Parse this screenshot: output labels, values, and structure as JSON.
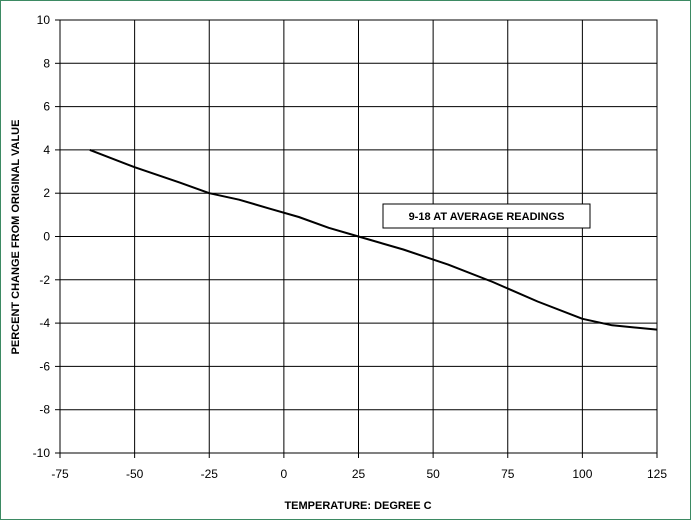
{
  "chart_data": {
    "type": "line",
    "title": "",
    "xlabel": "TEMPERATURE: DEGREE C",
    "ylabel": "PERCENT CHANGE FROM ORIGINAL VALUE",
    "xlim": [
      -75,
      125
    ],
    "ylim": [
      -10,
      10
    ],
    "x_ticks": [
      -75,
      -50,
      -25,
      0,
      25,
      50,
      75,
      100,
      125
    ],
    "y_ticks": [
      10,
      8,
      6,
      4,
      2,
      0,
      -2,
      -4,
      -6,
      -8,
      -10
    ],
    "grid": true,
    "legend": "none",
    "annotation": "9-18 AT AVERAGE READINGS",
    "line_color": "#000000",
    "frame_color": "#3d8a63",
    "series": [
      {
        "x": [
          -65,
          -50,
          -35,
          -25,
          -15,
          -5,
          5,
          15,
          25,
          40,
          55,
          70,
          85,
          100,
          110,
          125
        ],
        "values": [
          4.0,
          3.2,
          2.5,
          2.0,
          1.7,
          1.3,
          0.9,
          0.4,
          0.0,
          -0.6,
          -1.3,
          -2.1,
          -3.0,
          -3.8,
          -4.1,
          -4.3
        ]
      }
    ]
  }
}
